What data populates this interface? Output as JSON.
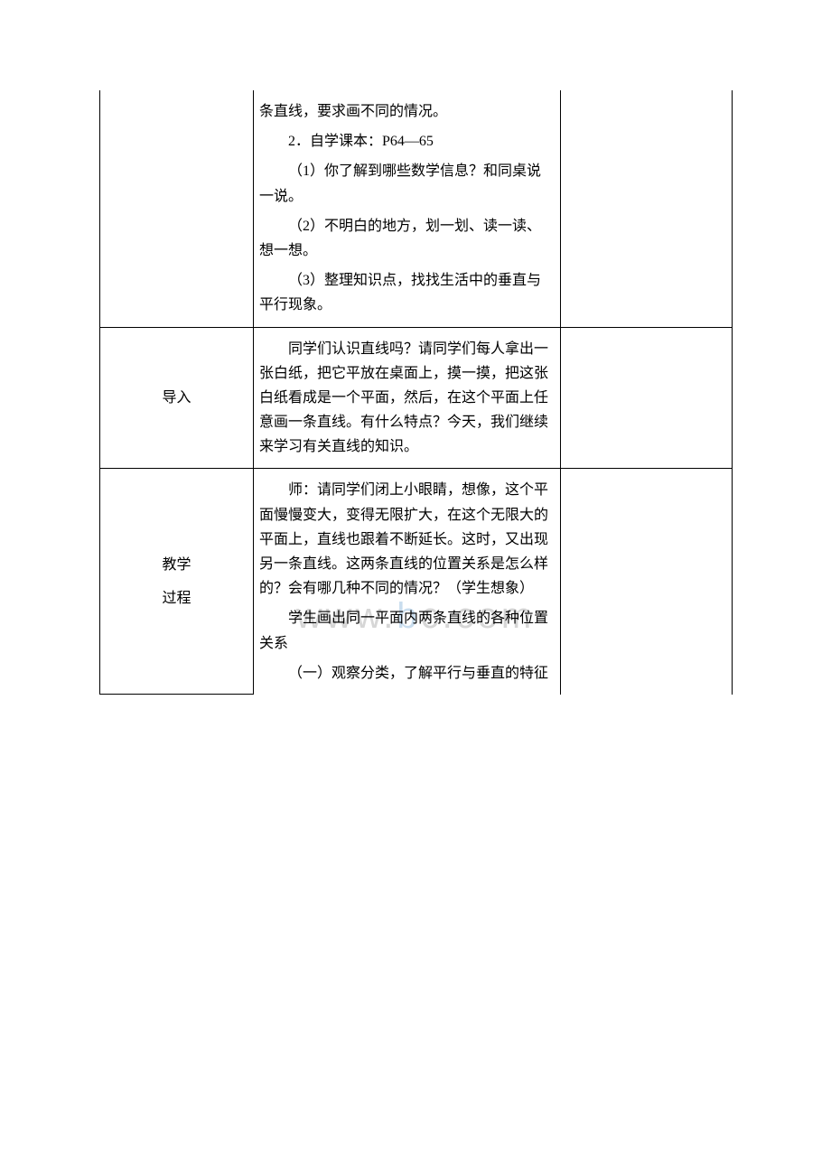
{
  "watermark": {
    "left": "www.",
    "mid": "b",
    "right": "c.com"
  },
  "rows": [
    {
      "label": "",
      "paragraphs": [
        "条直线，要求画不同的情况。",
        "2．自学课本：P64—65",
        "（1）你了解到哪些数学信息？和同桌说一说。",
        "（2）不明白的地方，划一划、读一读、想一想。",
        "（3）整理知识点，找找生活中的垂直与平行现象。"
      ]
    },
    {
      "label": "导入",
      "paragraphs": [
        "同学们认识直线吗？请同学们每人拿出一张白纸，把它平放在桌面上，摸一摸，把这张白纸看成是一个平面，然后，在这个平面上任意画一条直线。有什么特点？今天，我们继续来学习有关直线的知识。"
      ]
    },
    {
      "label_lines": [
        "教学",
        "过程"
      ],
      "paragraphs": [
        "师：请同学们闭上小眼睛，想像，这个平面慢慢变大，变得无限扩大，在这个无限大的平面上，直线也跟着不断延长。这时，又出现另一条直线。这两条直线的位置关系是怎么样的？会有哪几种不同的情况？（学生想象）",
        "学生画出同一平面内两条直线的各种位置关系",
        "（一）观察分类，了解平行与垂直的特征"
      ]
    }
  ]
}
